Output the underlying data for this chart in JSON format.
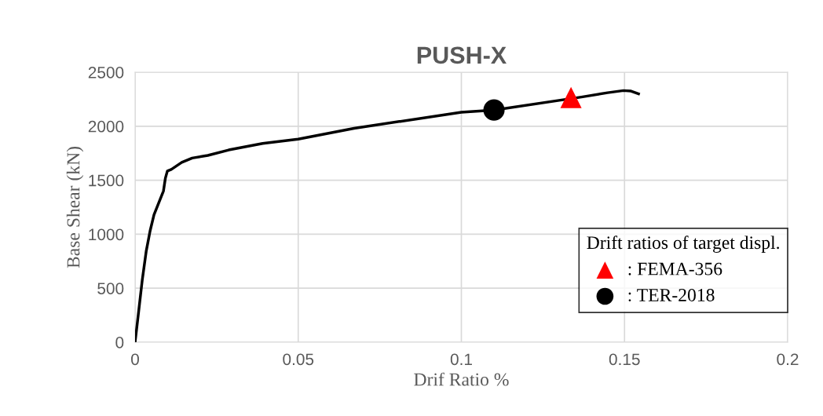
{
  "chart_data": {
    "type": "line",
    "title": "PUSH-X",
    "xlabel": "Drif Ratio %",
    "ylabel": "Base Shear (kN)",
    "legend_title": "Drift ratios of target displ.",
    "series": [
      {
        "color": "#000000",
        "marker": "none",
        "x": [
          0,
          0.001,
          0.0022,
          0.0034,
          0.0046,
          0.0058,
          0.0087,
          0.0093,
          0.0099,
          0.0111,
          0.0143,
          0.0175,
          0.0223,
          0.0287,
          0.0391,
          0.05,
          0.0671,
          0.1,
          0.11,
          0.1368,
          0.1448,
          0.1497,
          0.152,
          0.1543
        ],
        "values": [
          0,
          260,
          575,
          840,
          1030,
          1180,
          1400,
          1520,
          1585,
          1600,
          1665,
          1705,
          1730,
          1780,
          1840,
          1880,
          1980,
          2130,
          2150,
          2270,
          2310,
          2330,
          2325,
          2300
        ]
      },
      {
        "type": "scatter",
        "name": ": FEMA-356",
        "color": "#ff0000",
        "marker": "triangle",
        "x": [
          0.1336
        ],
        "values": [
          2265
        ]
      },
      {
        "type": "scatter",
        "name": ": TER-2018",
        "color": "#000000",
        "marker": "circle",
        "x": [
          0.11
        ],
        "values": [
          2150
        ]
      }
    ],
    "xlim": [
      0,
      0.2
    ],
    "xticks": [
      0,
      0.05,
      0.1,
      0.15,
      0.2
    ],
    "ylim": [
      0,
      2500
    ],
    "yticks": [
      0,
      500,
      1000,
      1500,
      2000,
      2500
    ],
    "grid": true,
    "legend": "lower right"
  }
}
